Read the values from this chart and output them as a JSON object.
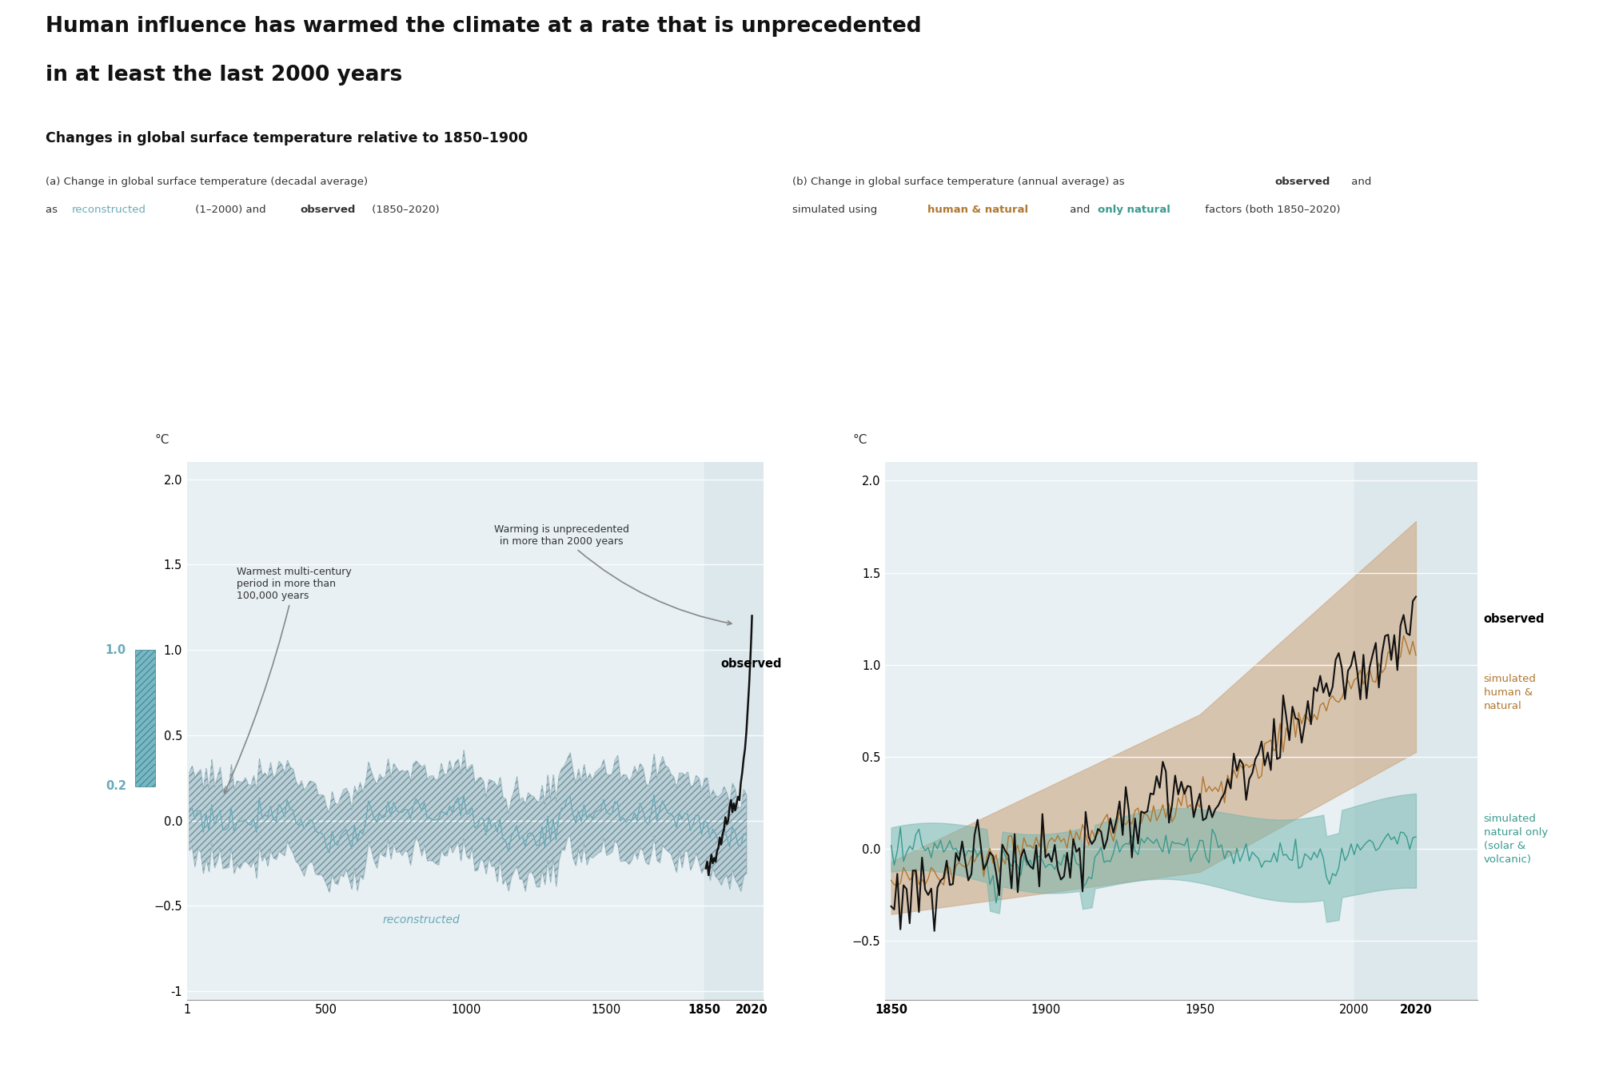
{
  "title_line1": "Human influence has warmed the climate at a rate that is unprecedented",
  "title_line2": "in at least the last 2000 years",
  "subtitle": "Changes in global surface temperature relative to 1850–1900",
  "ylabel": "°C",
  "reconstructed_color": "#6aaab8",
  "observed_color": "#111111",
  "human_natural_color": "#b07830",
  "natural_only_color": "#3a9a8e",
  "band_a_color": "#adc6cc",
  "band_human_natural_color": "#cda882",
  "band_natural_only_color": "#72b5ae",
  "highlight_color": "#dde8ec",
  "bar_color": "#6aaab8",
  "panel_bg_color": "#e8f0f3",
  "background_color": "#ffffff",
  "ylim_a": [
    -1.05,
    2.1
  ],
  "ylim_b": [
    -0.82,
    2.1
  ],
  "yticks_a": [
    -1.0,
    -0.5,
    0.0,
    0.5,
    1.0,
    1.5,
    2.0
  ],
  "yticks_b": [
    -0.5,
    0.0,
    0.5,
    1.0,
    1.5,
    2.0
  ],
  "xticks_a_pos": [
    1,
    500,
    1000,
    1500,
    1850,
    2020
  ],
  "xticks_a_labels": [
    "1",
    "500",
    "1000",
    "1500",
    "1850",
    "2020"
  ],
  "xticks_b_pos": [
    1850,
    1900,
    1950,
    2000,
    2020
  ],
  "xticks_b_labels": [
    "1850",
    "1900",
    "1950",
    "2000",
    "2020"
  ],
  "xlim_a": [
    1,
    2060
  ],
  "xlim_b": [
    1848,
    2040
  ],
  "annot1_text": "Warming is unprecedented\nin more than 2000 years",
  "annot2_text": "Warmest multi-century\nperiod in more than\n100,000 years",
  "observed_label_a": "observed",
  "reconstructed_label": "reconstructed",
  "observed_label_b": "observed",
  "human_natural_label": "simulated\nhuman &\nnatural",
  "natural_only_label": "simulated\nnatural only\n(solar &\nvolcanic)",
  "bar_value_top": "1.0",
  "bar_value_bot": "0.2"
}
